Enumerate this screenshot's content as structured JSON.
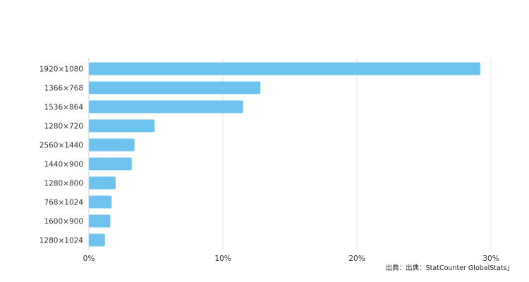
{
  "chart_data": {
    "type": "bar",
    "orientation": "horizontal",
    "categories": [
      "1920×1080",
      "1366×768",
      "1536×864",
      "1280×720",
      "2560×1440",
      "1440×900",
      "1280×800",
      "768×1024",
      "1600×900",
      "1280×1024"
    ],
    "values": [
      29.2,
      12.8,
      11.5,
      4.9,
      3.4,
      3.2,
      2.0,
      1.7,
      1.6,
      1.2
    ],
    "xlim": [
      0,
      30
    ],
    "x_ticks": [
      0,
      10,
      20,
      30
    ],
    "x_tick_labels": [
      "0%",
      "10%",
      "20%",
      "30%"
    ],
    "grid": "vertical",
    "bar_color": "#6ec3ee",
    "gridline_color": "#e6e6e6",
    "title": "",
    "xlabel": "",
    "ylabel": ""
  },
  "source_text": "出典：出典：StatCounter GlobalStats」"
}
